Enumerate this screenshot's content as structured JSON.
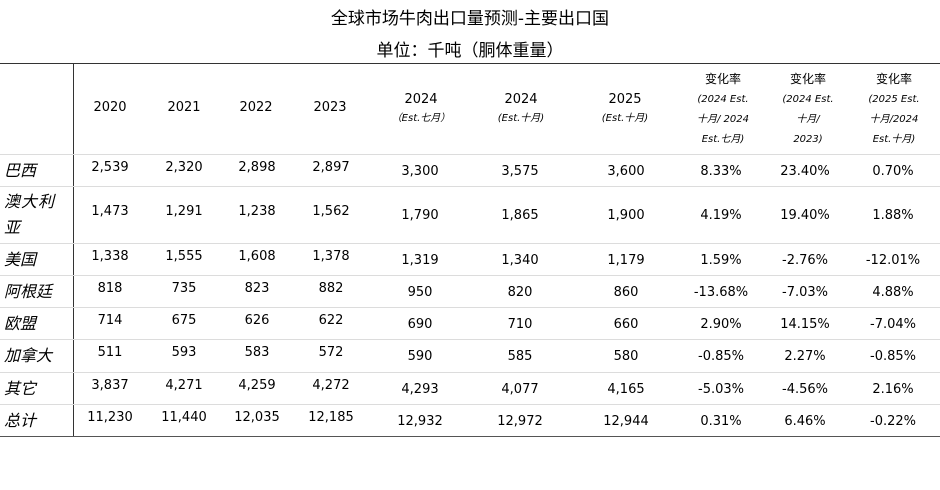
{
  "title": "全球市场牛肉出口量预测-主要出口国",
  "unit": "单位：千吨（胴体重量）",
  "headers": {
    "y2020": "2020",
    "y2021": "2021",
    "y2022": "2022",
    "y2023": "2023",
    "y2024a": "2024",
    "y2024a_sub": "（Est.七月）",
    "y2024b": "2024",
    "y2024b_sub": "(Est.十月)",
    "y2025": "2025",
    "y2025_sub": "(Est.十月)",
    "chg1": "变化率",
    "chg1_l1": "(2024 Est.",
    "chg1_l2": "十月/ 2024",
    "chg1_l3": "Est.七月)",
    "chg2": "变化率",
    "chg2_l1": "(2024 Est.",
    "chg2_l2": "十月/",
    "chg2_l3": "2023)",
    "chg3": "变化率",
    "chg3_l1": "(2025 Est.",
    "chg3_l2": "十月/2024",
    "chg3_l3": "Est.十月)"
  },
  "rows": [
    {
      "label": "巴西",
      "v": [
        "2,539",
        "2,320",
        "2,898",
        "2,897",
        "3,300",
        "3,575",
        "3,600",
        "8.33%",
        "23.40%",
        "0.70%"
      ]
    },
    {
      "label": "澳大利亚",
      "v": [
        "1,473",
        "1,291",
        "1,238",
        "1,562",
        "1,790",
        "1,865",
        "1,900",
        "4.19%",
        "19.40%",
        "1.88%"
      ]
    },
    {
      "label": "美国",
      "v": [
        "1,338",
        "1,555",
        "1,608",
        "1,378",
        "1,319",
        "1,340",
        "1,179",
        "1.59%",
        "-2.76%",
        "-12.01%"
      ]
    },
    {
      "label": "阿根廷",
      "v": [
        "818",
        "735",
        "823",
        "882",
        "950",
        "820",
        "860",
        "-13.68%",
        "-7.03%",
        "4.88%"
      ]
    },
    {
      "label": "欧盟",
      "v": [
        "714",
        "675",
        "626",
        "622",
        "690",
        "710",
        "660",
        "2.90%",
        "14.15%",
        "-7.04%"
      ]
    },
    {
      "label": "加拿大",
      "v": [
        "511",
        "593",
        "583",
        "572",
        "590",
        "585",
        "580",
        "-0.85%",
        "2.27%",
        "-0.85%"
      ]
    },
    {
      "label": "其它",
      "v": [
        "3,837",
        "4,271",
        "4,259",
        "4,272",
        "4,293",
        "4,077",
        "4,165",
        "-5.03%",
        "-4.56%",
        "2.16%"
      ]
    },
    {
      "label": "总计",
      "v": [
        "11,230",
        "11,440",
        "12,035",
        "12,185",
        "12,932",
        "12,972",
        "12,944",
        "0.31%",
        "6.46%",
        "-0.22%"
      ]
    }
  ]
}
